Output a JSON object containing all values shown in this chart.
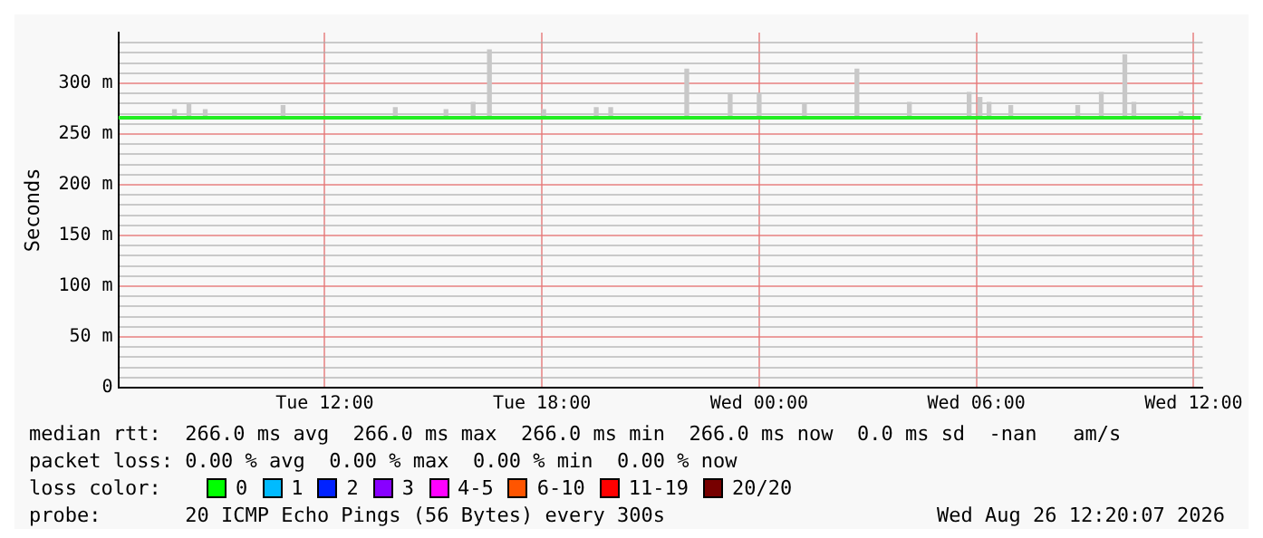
{
  "chart_data": {
    "type": "line",
    "ylabel": "Seconds",
    "xlim": [
      "2026-08-25T06:18",
      "2026-08-26T12:15"
    ],
    "ylim": [
      0,
      350
    ],
    "xticks": [
      {
        "value": "2026-08-25T12:00",
        "label": "Tue 12:00"
      },
      {
        "value": "2026-08-25T18:00",
        "label": "Tue 18:00"
      },
      {
        "value": "2026-08-26T00:00",
        "label": "Wed 00:00"
      },
      {
        "value": "2026-08-26T06:00",
        "label": "Wed 06:00"
      },
      {
        "value": "2026-08-26T12:00",
        "label": "Wed 12:00"
      }
    ],
    "yticks": [
      {
        "value": 0,
        "label": "0"
      },
      {
        "value": 10,
        "label": null
      },
      {
        "value": 20,
        "label": null
      },
      {
        "value": 30,
        "label": null
      },
      {
        "value": 40,
        "label": null
      },
      {
        "value": 50,
        "label": "50 m"
      },
      {
        "value": 60,
        "label": null
      },
      {
        "value": 70,
        "label": null
      },
      {
        "value": 80,
        "label": null
      },
      {
        "value": 90,
        "label": null
      },
      {
        "value": 100,
        "label": "100 m"
      },
      {
        "value": 110,
        "label": null
      },
      {
        "value": 120,
        "label": null
      },
      {
        "value": 130,
        "label": null
      },
      {
        "value": 140,
        "label": null
      },
      {
        "value": 150,
        "label": "150 m"
      },
      {
        "value": 160,
        "label": null
      },
      {
        "value": 170,
        "label": null
      },
      {
        "value": 180,
        "label": null
      },
      {
        "value": 190,
        "label": null
      },
      {
        "value": 200,
        "label": "200 m"
      },
      {
        "value": 210,
        "label": null
      },
      {
        "value": 220,
        "label": null
      },
      {
        "value": 230,
        "label": null
      },
      {
        "value": 240,
        "label": null
      },
      {
        "value": 250,
        "label": "250 m"
      },
      {
        "value": 260,
        "label": null
      },
      {
        "value": 270,
        "label": null
      },
      {
        "value": 280,
        "label": null
      },
      {
        "value": 290,
        "label": null
      },
      {
        "value": 300,
        "label": "300 m"
      },
      {
        "value": 310,
        "label": null
      },
      {
        "value": 320,
        "label": null
      },
      {
        "value": 330,
        "label": null
      },
      {
        "value": 340,
        "label": null
      }
    ],
    "grid": true,
    "legend": false,
    "series": [
      {
        "type": "bar",
        "color": "#c8c8c8",
        "x": [
          "2026-08-25T07:51",
          "2026-08-25T08:15",
          "2026-08-25T08:42",
          "2026-08-25T10:51",
          "2026-08-25T13:57",
          "2026-08-25T15:21",
          "2026-08-25T16:06",
          "2026-08-25T16:33",
          "2026-08-25T18:03",
          "2026-08-25T19:30",
          "2026-08-25T19:54",
          "2026-08-25T22:00",
          "2026-08-25T23:12",
          "2026-08-26T00:00",
          "2026-08-26T01:15",
          "2026-08-26T02:42",
          "2026-08-26T04:09",
          "2026-08-26T05:48",
          "2026-08-26T06:06",
          "2026-08-26T06:21",
          "2026-08-26T06:57",
          "2026-08-26T08:48",
          "2026-08-26T09:27",
          "2026-08-26T10:06",
          "2026-08-26T10:21",
          "2026-08-26T11:39"
        ],
        "base": [
          266,
          266,
          266,
          266,
          266,
          266,
          266,
          266,
          266,
          266,
          266,
          266,
          266,
          266,
          266,
          266,
          266,
          266,
          266,
          266,
          266,
          266,
          266,
          266,
          266,
          266
        ],
        "values": [
          8,
          13,
          8,
          12,
          10,
          8,
          15,
          67,
          8,
          10,
          10,
          48,
          24,
          24,
          13,
          48,
          15,
          25,
          20,
          15,
          12,
          12,
          25,
          62,
          15,
          6
        ]
      },
      {
        "color": "#22ee22",
        "x": [
          "2026-08-25T06:18",
          "2026-08-26T12:12"
        ],
        "values": [
          266,
          266
        ]
      }
    ],
    "annotations": [
      "median rtt:  266.0 ms avg  266.0 ms max  266.0 ms min  266.0 ms now  0.0 ms sd  -nan   am/s",
      "packet loss: 0.00 % avg  0.00 % max  0.00 % min  0.00 % now",
      "loss color:",
      "0",
      "1",
      "2",
      "3",
      "4-5",
      "6-10",
      "11-19",
      "20/20",
      "probe:       20 ICMP Echo Pings (56 Bytes) every 300s",
      "Wed Aug 26 12:20:07 2026"
    ]
  }
}
